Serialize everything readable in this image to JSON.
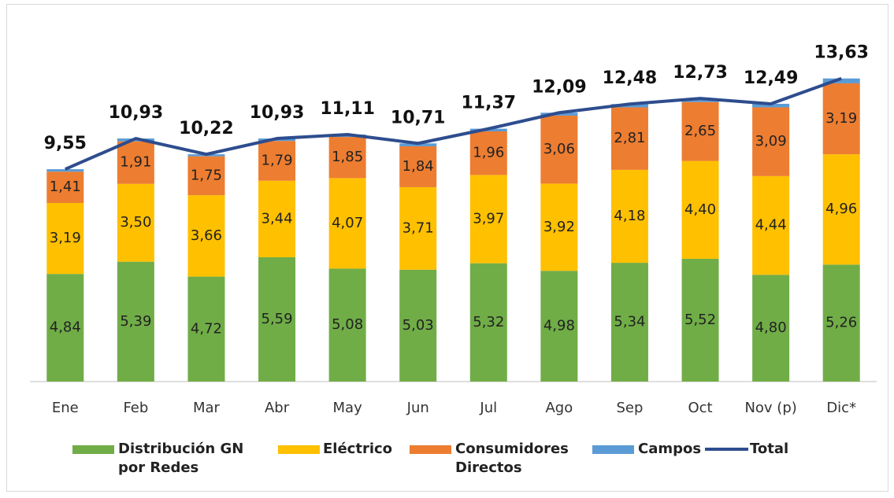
{
  "chart_data": {
    "type": "bar",
    "stacked": true,
    "categories": [
      "Ene",
      "Feb",
      "Mar",
      "Abr",
      "May",
      "Jun",
      "Jul",
      "Ago",
      "Sep",
      "Oct",
      "Nov (p)",
      "Dic*"
    ],
    "ylim": [
      0,
      15
    ],
    "series": [
      {
        "name": "Distribución GN por Redes",
        "color": "#70ad47",
        "values": [
          4.84,
          5.39,
          4.72,
          5.59,
          5.08,
          5.03,
          5.32,
          4.98,
          5.34,
          5.52,
          4.8,
          5.26
        ],
        "value_labels": [
          "4,84",
          "5,39",
          "4,72",
          "5,59",
          "5,08",
          "5,03",
          "5,32",
          "4,98",
          "5,34",
          "5,52",
          "4,80",
          "5,26"
        ]
      },
      {
        "name": "Eléctrico",
        "color": "#ffc000",
        "values": [
          3.19,
          3.5,
          3.66,
          3.44,
          4.07,
          3.71,
          3.97,
          3.92,
          4.18,
          4.4,
          4.44,
          4.96
        ],
        "value_labels": [
          "3,19",
          "3,50",
          "3,66",
          "3,44",
          "4,07",
          "3,71",
          "3,97",
          "3,92",
          "4,18",
          "4,40",
          "4,44",
          "4,96"
        ]
      },
      {
        "name": "Consumidores Directos",
        "color": "#ed7d31",
        "values": [
          1.41,
          1.91,
          1.75,
          1.79,
          1.85,
          1.84,
          1.96,
          3.06,
          2.81,
          2.65,
          3.09,
          3.19
        ],
        "value_labels": [
          "1,41",
          "1,91",
          "1,75",
          "1,79",
          "1,85",
          "1,84",
          "1,96",
          "3,06",
          "2,81",
          "2,65",
          "3,09",
          "3,19"
        ]
      },
      {
        "name": "Campos",
        "color": "#5b9bd5",
        "values": [
          0.11,
          0.13,
          0.09,
          0.11,
          0.11,
          0.13,
          0.12,
          0.13,
          0.15,
          0.16,
          0.16,
          0.22
        ]
      },
      {
        "name": "Total",
        "type": "line",
        "color": "#2e4d8e",
        "values": [
          9.55,
          10.93,
          10.22,
          10.93,
          11.11,
          10.71,
          11.37,
          12.09,
          12.48,
          12.73,
          12.49,
          13.63
        ],
        "value_labels": [
          "9,55",
          "10,93",
          "10,22",
          "10,93",
          "11,11",
          "10,71",
          "11,37",
          "12,09",
          "12,48",
          "12,73",
          "12,49",
          "13,63"
        ]
      }
    ]
  }
}
